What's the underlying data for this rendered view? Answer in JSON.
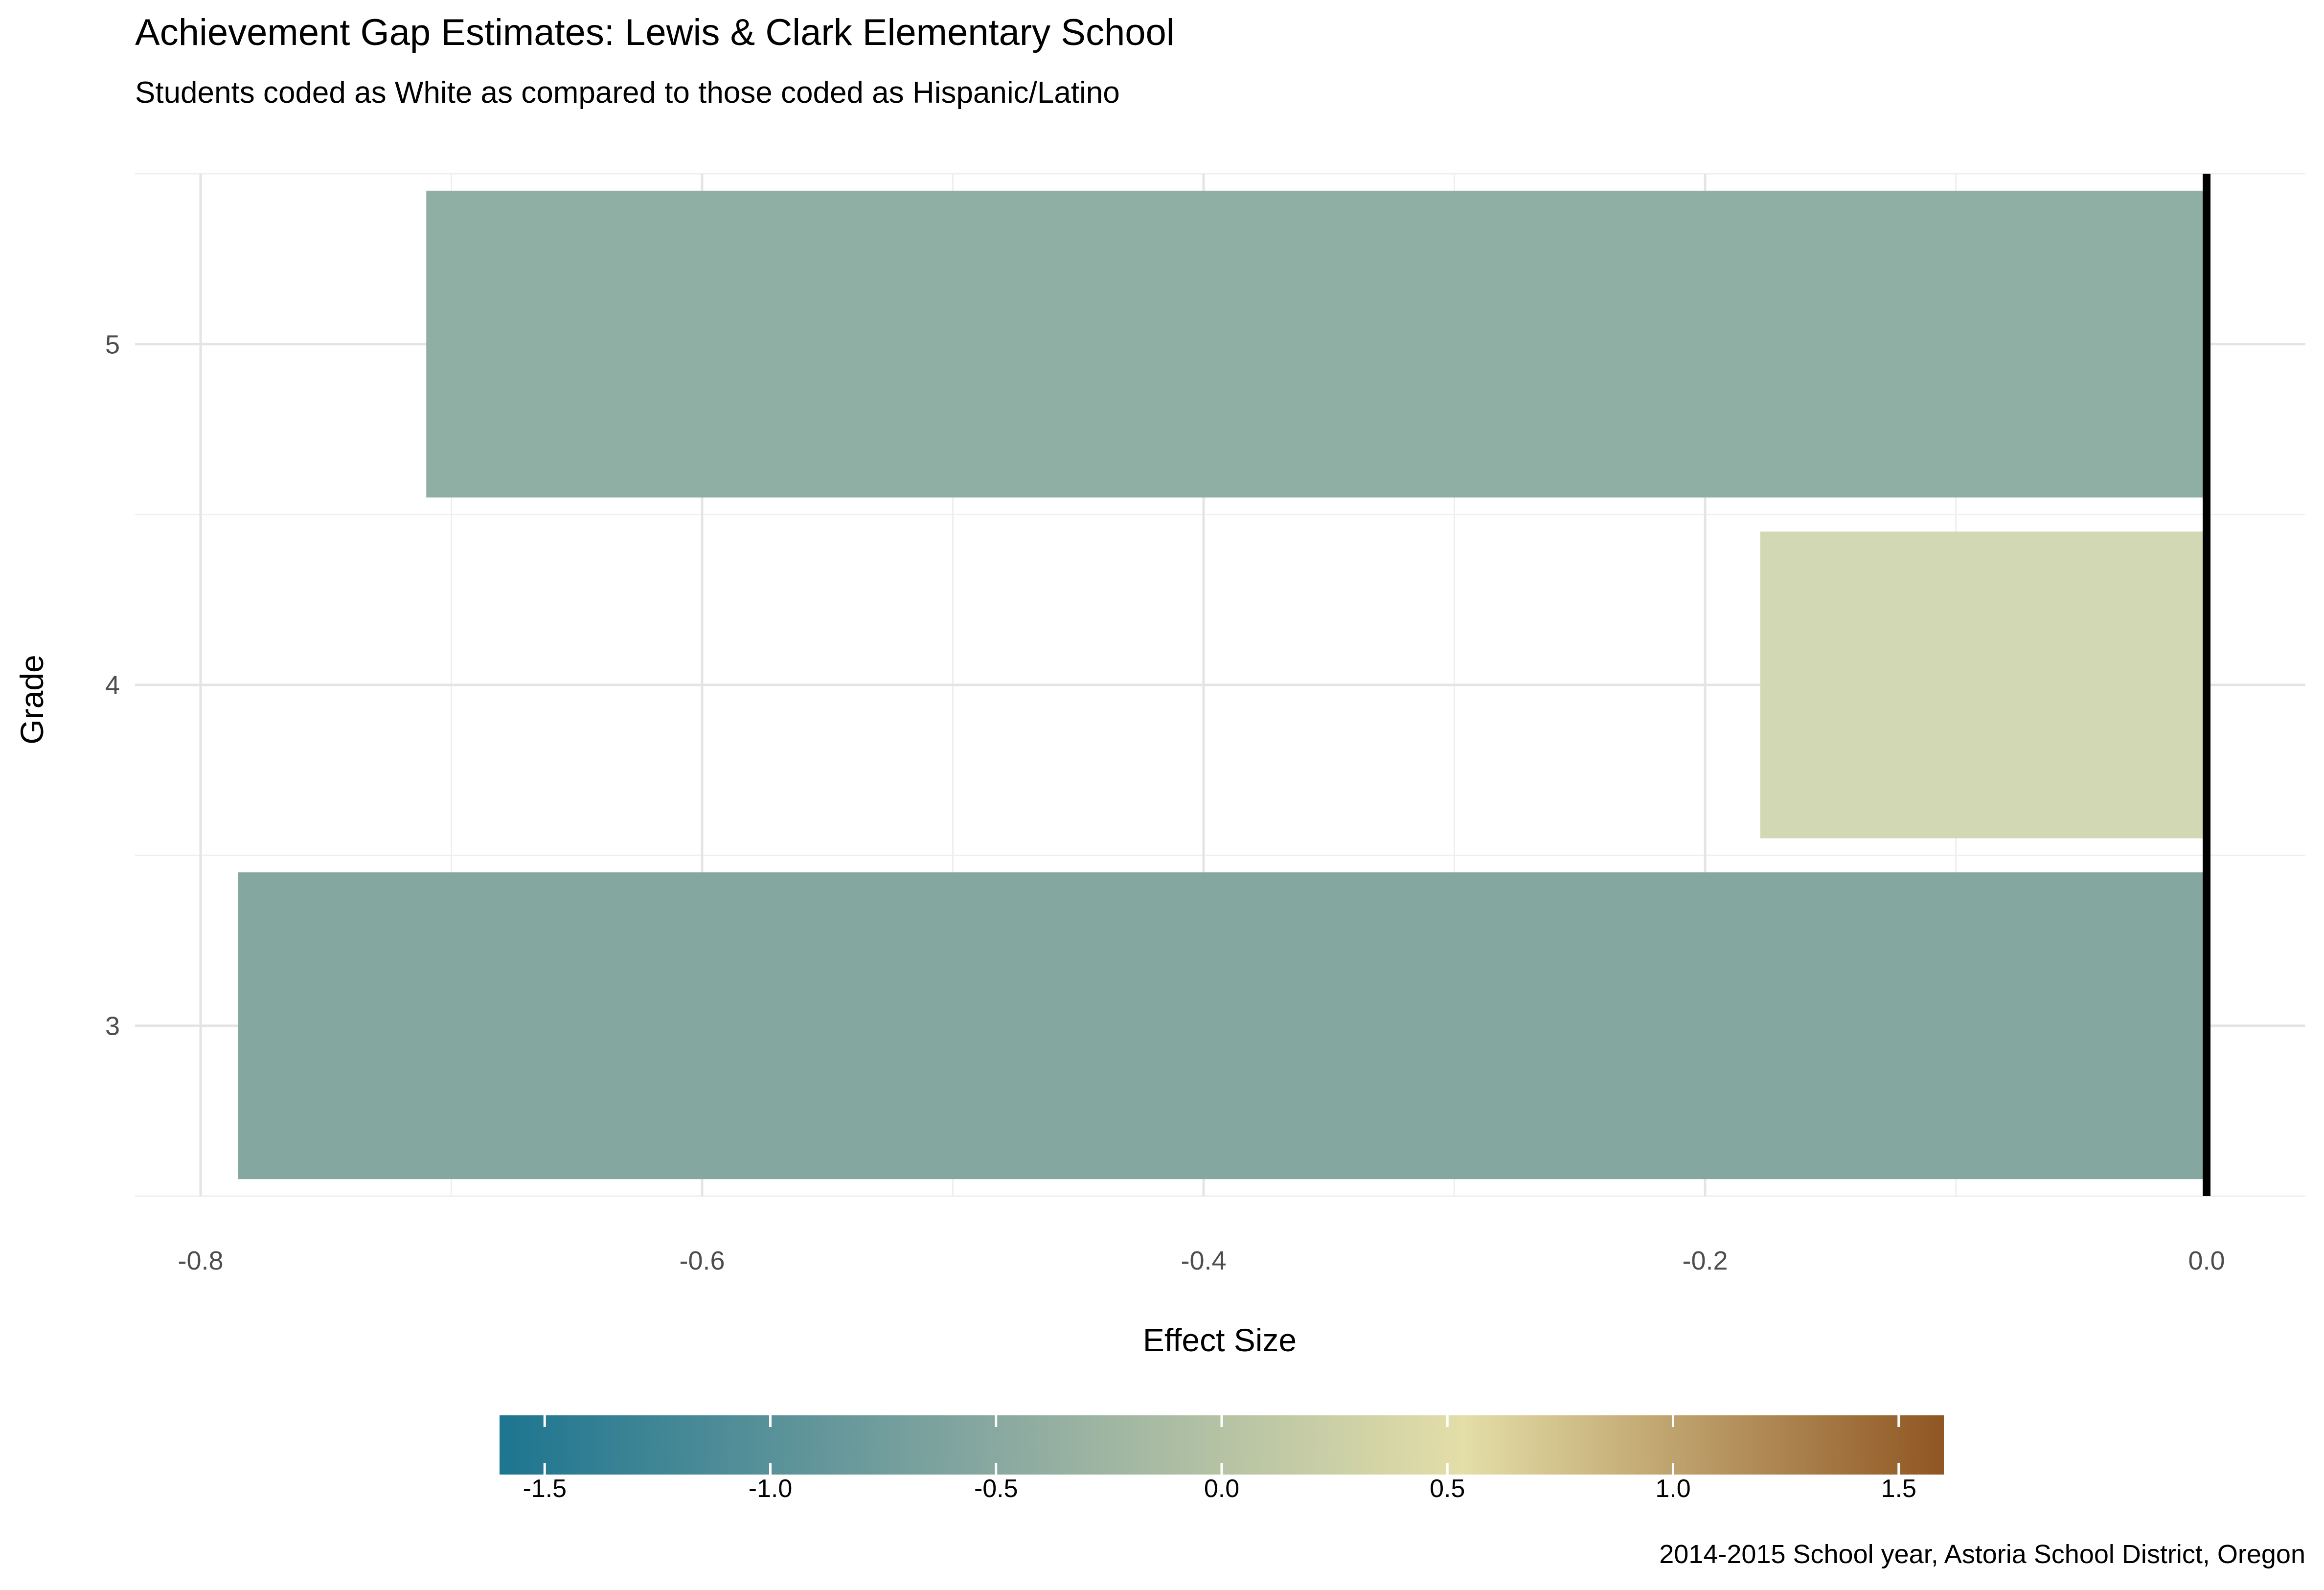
{
  "chart_data": {
    "type": "bar",
    "orientation": "horizontal",
    "title": "Achievement Gap Estimates: Lewis & Clark Elementary School",
    "subtitle": "Students coded as White as compared to those coded as Hispanic/Latino",
    "xlabel": "Effect Size",
    "ylabel": "Grade",
    "categories": [
      "3",
      "4",
      "5"
    ],
    "values": [
      -0.785,
      -0.178,
      -0.71
    ],
    "bar_colors": [
      "#84a89f",
      "#d2d8b4",
      "#8fafa5"
    ],
    "xlim": [
      -0.82,
      0.02
    ],
    "x_ticks": [
      -0.8,
      -0.6,
      -0.4,
      -0.2,
      0.0
    ],
    "x_tick_labels": [
      "-0.8",
      "-0.6",
      "-0.4",
      "-0.2",
      "0.0"
    ],
    "reference_line": 0.0,
    "grid": true,
    "legend": {
      "placement": "bottom",
      "type": "colorbar",
      "range": [
        -1.6,
        1.6
      ],
      "ticks": [
        -1.5,
        -1.0,
        -0.5,
        0.0,
        0.5,
        1.0,
        1.5
      ],
      "tick_labels": [
        "-1.5",
        "-1.0",
        "-0.5",
        "0.0",
        "0.5",
        "1.0",
        "1.5"
      ],
      "colors": [
        "#1d7590",
        "#86a7a0",
        "#e4dea8",
        "#8f5622"
      ]
    },
    "caption": "2014-2015 School year, Astoria   School District, Oregon"
  }
}
